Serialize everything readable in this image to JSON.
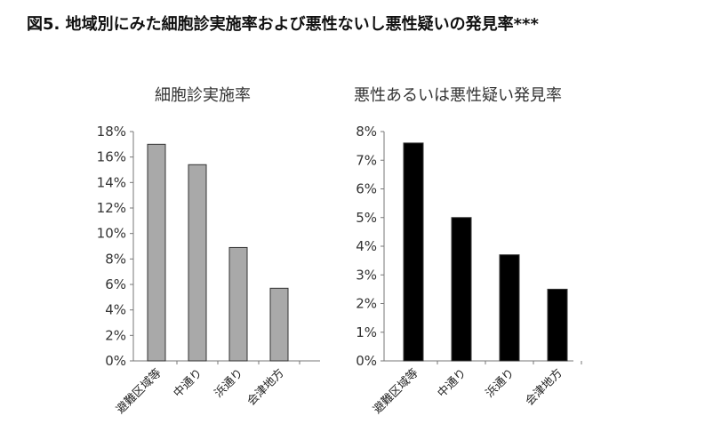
{
  "figure": {
    "title": "図5. 地域別にみた細胞診実施率および悪性ないし悪性疑いの発見率***"
  },
  "chart_data": [
    {
      "type": "bar",
      "title": "細胞診実施率",
      "categories": [
        "避難区域等",
        "中通り",
        "浜通り",
        "会津地方"
      ],
      "values": [
        0.17,
        0.154,
        0.089,
        0.057
      ],
      "ylim": [
        0,
        0.18
      ],
      "yticks": [
        "0%",
        "2%",
        "4%",
        "6%",
        "8%",
        "10%",
        "12%",
        "14%",
        "16%",
        "18%"
      ],
      "bar_color": "#a9a9a9",
      "grid": false
    },
    {
      "type": "bar",
      "title": "悪性あるいは悪性疑い発見率",
      "categories": [
        "避難区域等",
        "中通り",
        "浜通り",
        "会津地方"
      ],
      "values": [
        0.076,
        0.05,
        0.037,
        0.025
      ],
      "ylim": [
        0,
        0.08
      ],
      "yticks": [
        "0%",
        "1%",
        "2%",
        "3%",
        "4%",
        "5%",
        "6%",
        "7%",
        "8%"
      ],
      "bar_color": "#000000",
      "grid": false
    }
  ]
}
